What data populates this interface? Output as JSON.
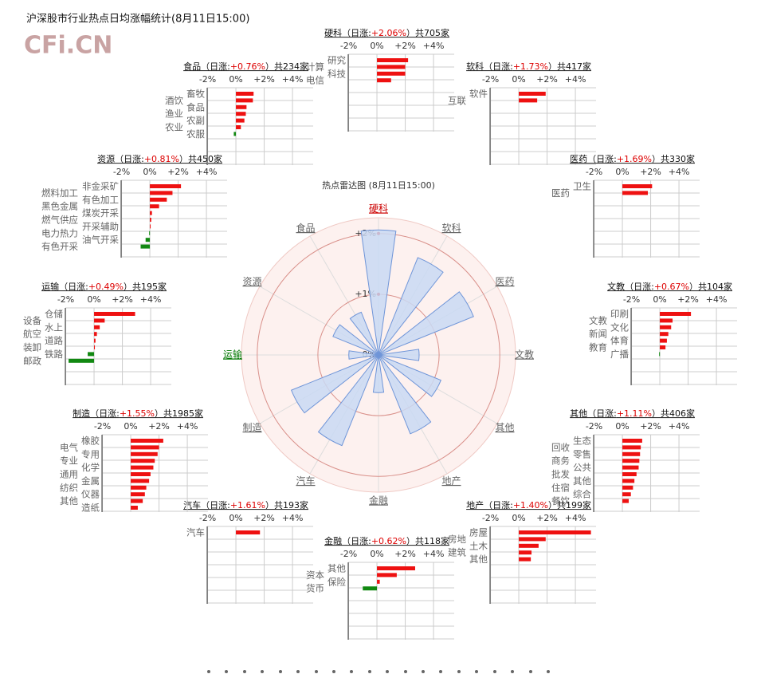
{
  "header": {
    "title": "沪深股市行业热点日均涨幅统计(8月11日15:00)",
    "logo": "CFi.CN"
  },
  "chart_data": [
    {
      "type": "radar",
      "title": "热点雷达图 (8月11日15:00)",
      "categories": [
        "硬科",
        "软科",
        "医药",
        "文教",
        "其他",
        "地产",
        "金融",
        "汽车",
        "制造",
        "运输",
        "资源",
        "食品"
      ],
      "values": [
        2.06,
        1.73,
        1.69,
        0.67,
        1.11,
        1.4,
        0.62,
        1.61,
        1.55,
        0.49,
        0.81,
        0.76
      ],
      "label_colors": [
        "#cc0000",
        "#666666",
        "#666666",
        "#666666",
        "#666666",
        "#666666",
        "#666666",
        "#666666",
        "#666666",
        "#007700",
        "#666666",
        "#666666"
      ],
      "color": "#c9d9f3",
      "rlim": [
        0,
        2.26
      ],
      "rticks": [
        {
          "value": 0,
          "label": "0%"
        },
        {
          "value": 1,
          "label": "+1%"
        },
        {
          "value": 2,
          "label": "+2%"
        }
      ]
    },
    {
      "type": "hbar",
      "title_parts": [
        "硬科（日涨:",
        "+2.06%",
        "）共705家"
      ],
      "categories": [
        "研究",
        "计算",
        "科技",
        "电信"
      ],
      "values": [
        2.2,
        2.0,
        2.0,
        1.0
      ],
      "xlim": [
        -2.03,
        5.46
      ],
      "xticks": [
        {
          "value": -2,
          "label": "-2%"
        },
        {
          "value": 0,
          "label": "0%"
        },
        {
          "value": 2,
          "label": "+2%"
        },
        {
          "value": 4,
          "label": "+4%"
        }
      ]
    },
    {
      "type": "hbar",
      "title_parts": [
        "软科（日涨:",
        "+1.73%",
        "）共417家"
      ],
      "categories": [
        "软件",
        "互联"
      ],
      "values": [
        1.9,
        1.3
      ],
      "xlim": [
        -2.03,
        5.46
      ],
      "xticks": [
        {
          "value": -2,
          "label": "-2%"
        },
        {
          "value": 0,
          "label": "0%"
        },
        {
          "value": 2,
          "label": "+2%"
        },
        {
          "value": 4,
          "label": "+4%"
        }
      ]
    },
    {
      "type": "hbar",
      "title_parts": [
        "医药（日涨:",
        "+1.69%",
        "）共330家"
      ],
      "categories": [
        "卫生",
        "医药"
      ],
      "values": [
        2.1,
        1.8
      ],
      "xlim": [
        -2.03,
        5.46
      ],
      "xticks": [
        {
          "value": -2,
          "label": "-2%"
        },
        {
          "value": 0,
          "label": "0%"
        },
        {
          "value": 2,
          "label": "+2%"
        },
        {
          "value": 4,
          "label": "+4%"
        }
      ]
    },
    {
      "type": "hbar",
      "title_parts": [
        "文教（日涨:",
        "+0.67%",
        "）共104家"
      ],
      "categories": [
        "印刷",
        "文教",
        "文化",
        "新闻",
        "体育",
        "教育",
        "广播"
      ],
      "values": [
        2.2,
        0.9,
        0.8,
        0.6,
        0.5,
        0.4,
        -0.05
      ],
      "xlim": [
        -2.03,
        5.46
      ],
      "xticks": [
        {
          "value": -2,
          "label": "-2%"
        },
        {
          "value": 0,
          "label": "0%"
        },
        {
          "value": 2,
          "label": "+2%"
        },
        {
          "value": 4,
          "label": "+4%"
        }
      ]
    },
    {
      "type": "hbar",
      "title_parts": [
        "其他（日涨:",
        "+1.11%",
        "）共406家"
      ],
      "categories": [
        "生态",
        "回收",
        "零售",
        "商务",
        "公共",
        "批发",
        "其他",
        "住宿",
        "综合",
        "餐饮"
      ],
      "values": [
        1.4,
        1.3,
        1.25,
        1.2,
        1.15,
        1.0,
        0.85,
        0.75,
        0.6,
        0.45
      ],
      "xlim": [
        -2.03,
        5.46
      ],
      "xticks": [
        {
          "value": -2,
          "label": "-2%"
        },
        {
          "value": 0,
          "label": "0%"
        },
        {
          "value": 2,
          "label": "+2%"
        },
        {
          "value": 4,
          "label": "+4%"
        }
      ]
    },
    {
      "type": "hbar",
      "title_parts": [
        "地产（日涨:",
        "+1.40%",
        "）共199家"
      ],
      "categories": [
        "房屋",
        "房地",
        "土木",
        "建筑",
        "其他"
      ],
      "values": [
        5.1,
        1.9,
        1.4,
        0.9,
        0.85
      ],
      "xlim": [
        -2.03,
        5.46
      ],
      "xticks": [
        {
          "value": -2,
          "label": "-2%"
        },
        {
          "value": 0,
          "label": "0%"
        },
        {
          "value": 2,
          "label": "+2%"
        },
        {
          "value": 4,
          "label": "+4%"
        }
      ]
    },
    {
      "type": "hbar",
      "title_parts": [
        "金融（日涨:",
        "+0.62%",
        "）共118家"
      ],
      "categories": [
        "其他",
        "资本",
        "保险",
        "货币"
      ],
      "values": [
        2.7,
        1.4,
        0.2,
        -1.0
      ],
      "xlim": [
        -2.03,
        5.46
      ],
      "xticks": [
        {
          "value": -2,
          "label": "-2%"
        },
        {
          "value": 0,
          "label": "0%"
        },
        {
          "value": 2,
          "label": "+2%"
        },
        {
          "value": 4,
          "label": "+4%"
        }
      ]
    },
    {
      "type": "hbar",
      "title_parts": [
        "汽车（日涨:",
        "+1.61%",
        "）共193家"
      ],
      "categories": [
        "汽车"
      ],
      "values": [
        1.7
      ],
      "xlim": [
        -2.03,
        5.46
      ],
      "xticks": [
        {
          "value": -2,
          "label": "-2%"
        },
        {
          "value": 0,
          "label": "0%"
        },
        {
          "value": 2,
          "label": "+2%"
        },
        {
          "value": 4,
          "label": "+4%"
        }
      ]
    },
    {
      "type": "hbar",
      "title_parts": [
        "制造（日涨:",
        "+1.55%",
        "）共1985家"
      ],
      "categories": [
        "橡胶",
        "电气",
        "专用",
        "专业",
        "化学",
        "通用",
        "金属",
        "纺织",
        "仪器",
        "其他",
        "造纸"
      ],
      "values": [
        2.3,
        2.0,
        1.9,
        1.7,
        1.6,
        1.4,
        1.3,
        1.1,
        1.0,
        0.85,
        0.5
      ],
      "xlim": [
        -2.03,
        5.46
      ],
      "xticks": [
        {
          "value": -2,
          "label": "-2%"
        },
        {
          "value": 0,
          "label": "0%"
        },
        {
          "value": 2,
          "label": "+2%"
        },
        {
          "value": 4,
          "label": "+4%"
        }
      ]
    },
    {
      "type": "hbar",
      "title_parts": [
        "运输（日涨:",
        "+0.49%",
        "）共195家"
      ],
      "categories": [
        "仓储",
        "设备",
        "水上",
        "航空",
        "道路",
        "装卸",
        "铁路",
        "邮政"
      ],
      "values": [
        2.9,
        0.75,
        0.4,
        0.2,
        0.1,
        0.05,
        -0.45,
        -1.8
      ],
      "xlim": [
        -2.03,
        5.46
      ],
      "xticks": [
        {
          "value": -2,
          "label": "-2%"
        },
        {
          "value": 0,
          "label": "0%"
        },
        {
          "value": 2,
          "label": "+2%"
        },
        {
          "value": 4,
          "label": "+4%"
        }
      ]
    },
    {
      "type": "hbar",
      "title_parts": [
        "资源（日涨:",
        "+0.81%",
        "）共450家"
      ],
      "categories": [
        "非金采矿",
        "燃料加工",
        "有色加工",
        "黑色金属",
        "煤炭开采",
        "燃气供应",
        "开采辅助",
        "电力热力",
        "油气开采",
        "有色开采"
      ],
      "values": [
        2.2,
        1.6,
        1.2,
        0.65,
        0.15,
        0.1,
        0.05,
        -0.05,
        -0.3,
        -0.65
      ],
      "xlim": [
        -2.03,
        5.46
      ],
      "xticks": [
        {
          "value": -2,
          "label": "-2%"
        },
        {
          "value": 0,
          "label": "0%"
        },
        {
          "value": 2,
          "label": "+2%"
        },
        {
          "value": 4,
          "label": "+4%"
        }
      ]
    },
    {
      "type": "hbar",
      "title_parts": [
        "食品（日涨:",
        "+0.76%",
        "）共234家"
      ],
      "categories": [
        "畜牧",
        "酒饮",
        "食品",
        "渔业",
        "农副",
        "农业",
        "农服"
      ],
      "values": [
        1.25,
        1.2,
        0.75,
        0.7,
        0.6,
        0.35,
        -0.15
      ],
      "xlim": [
        -2.03,
        5.46
      ],
      "xticks": [
        {
          "value": -2,
          "label": "-2%"
        },
        {
          "value": 0,
          "label": "0%"
        },
        {
          "value": 2,
          "label": "+2%"
        },
        {
          "value": 4,
          "label": "+4%"
        }
      ]
    }
  ]
}
